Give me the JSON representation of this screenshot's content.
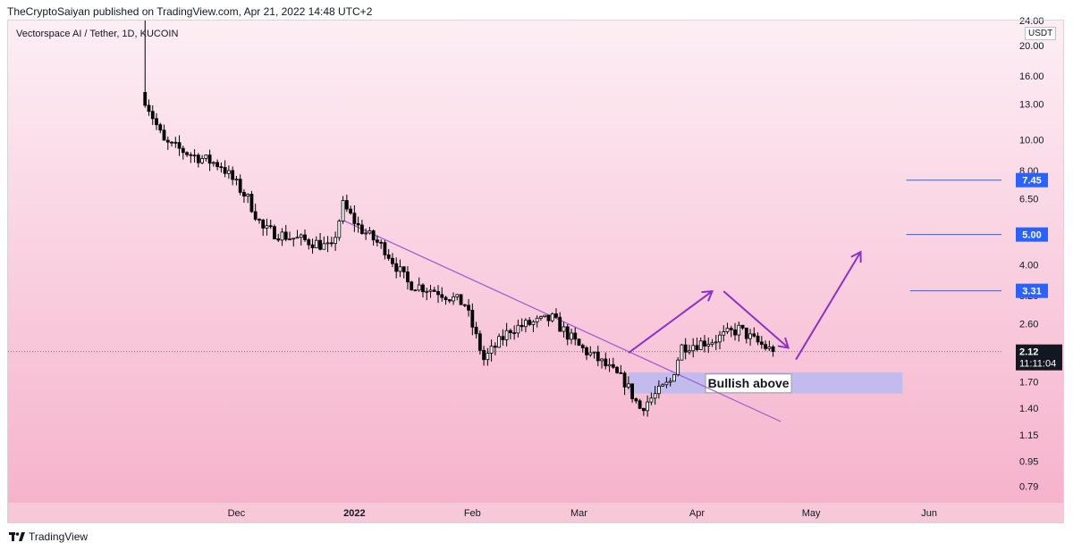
{
  "header": {
    "publisher_line": "TheCryptoSaiyan published on TradingView.com, Apr 21, 2022 14:48 UTC+2",
    "symbol_line": "Vectorspace AI / Tether, 1D, KUCOIN",
    "currency": "USDT"
  },
  "footer": {
    "brand": "TradingView",
    "logo_icon": "tradingview-logo-icon"
  },
  "colors": {
    "background_top": "#fdeef4",
    "background_bottom": "#f6b3cc",
    "candle": "#000000",
    "trendline": "#9b59d0",
    "arrow": "#8e2fc9",
    "zone": "#b8bbf2",
    "level_line": "#2962ff",
    "level_label_bg": "#2962ff",
    "price_label_bg": "#131722"
  },
  "chart_data": {
    "type": "candlestick",
    "title": "Vectorspace AI / Tether, 1D, KUCOIN",
    "scale": "log",
    "ylim": [
      0.7,
      24
    ],
    "y_ticks": [
      24.0,
      20.0,
      16.0,
      13.0,
      10.0,
      8.0,
      6.5,
      5.0,
      4.0,
      3.2,
      2.6,
      1.7,
      1.4,
      1.15,
      0.95,
      0.79
    ],
    "y_tick_labels": [
      "24.00",
      "20.00",
      "16.00",
      "13.00",
      "10.00",
      "8.00",
      "6.50",
      "5.00",
      "4.00",
      "3.20",
      "2.60",
      "1.70",
      "1.40",
      "1.15",
      "0.95",
      "0.79"
    ],
    "x_labels": [
      "Dec",
      "2022",
      "Feb",
      "Mar",
      "Apr",
      "May",
      "Jun"
    ],
    "x_label_dates": [
      "2021-12-01",
      "2022-01-01",
      "2022-02-01",
      "2022-03-01",
      "2022-04-01",
      "2022-05-01",
      "2022-06-01"
    ],
    "x_start": "2021-10-02",
    "x_end": "2022-06-20",
    "first_candle": "2021-11-07",
    "last_price": 2.12,
    "last_price_label": "2.12",
    "countdown_label": "11:11:04",
    "levels": [
      {
        "value": 7.45,
        "label": "7.45",
        "from": "2022-05-26"
      },
      {
        "value": 5.0,
        "label": "5.00",
        "from": "2022-05-26"
      },
      {
        "value": 3.31,
        "label": "3.31",
        "from": "2022-05-27"
      }
    ],
    "support_zone": {
      "low": 1.56,
      "high": 1.82,
      "from": "2022-03-14",
      "to": "2022-05-25",
      "label": "Bullish above"
    },
    "trendline": {
      "from": [
        "2021-12-29",
        5.55
      ],
      "to": [
        "2022-04-23",
        1.27
      ]
    },
    "arrows": [
      {
        "from": [
          "2022-03-14",
          2.1
        ],
        "to": [
          "2022-04-05",
          3.3
        ]
      },
      {
        "from": [
          "2022-04-08",
          3.3
        ],
        "to": [
          "2022-04-25",
          2.18
        ]
      },
      {
        "from": [
          "2022-04-27",
          2.0
        ],
        "to": [
          "2022-05-14",
          4.4
        ]
      }
    ],
    "candle_anchors": [
      [
        "2021-11-07",
        13.5
      ],
      [
        "2021-11-12",
        9.8
      ],
      [
        "2021-11-20",
        8.9
      ],
      [
        "2021-11-27",
        8.3
      ],
      [
        "2021-12-04",
        6.5
      ],
      [
        "2021-12-08",
        5.2
      ],
      [
        "2021-12-15",
        4.9
      ],
      [
        "2021-12-22",
        4.7
      ],
      [
        "2021-12-26",
        4.5
      ],
      [
        "2021-12-29",
        6.2
      ],
      [
        "2022-01-02",
        5.3
      ],
      [
        "2022-01-09",
        4.5
      ],
      [
        "2022-01-15",
        3.5
      ],
      [
        "2022-01-23",
        3.3
      ],
      [
        "2022-01-30",
        3.0
      ],
      [
        "2022-02-04",
        2.0
      ],
      [
        "2022-02-11",
        2.5
      ],
      [
        "2022-02-16",
        2.6
      ],
      [
        "2022-02-22",
        2.7
      ],
      [
        "2022-03-01",
        2.2
      ],
      [
        "2022-03-06",
        2.0
      ],
      [
        "2022-03-13",
        1.7
      ],
      [
        "2022-03-17",
        1.4
      ],
      [
        "2022-03-25",
        1.7
      ],
      [
        "2022-03-28",
        2.2
      ],
      [
        "2022-04-05",
        2.3
      ],
      [
        "2022-04-12",
        2.5
      ],
      [
        "2022-04-16",
        2.3
      ],
      [
        "2022-04-21",
        2.12
      ]
    ]
  }
}
